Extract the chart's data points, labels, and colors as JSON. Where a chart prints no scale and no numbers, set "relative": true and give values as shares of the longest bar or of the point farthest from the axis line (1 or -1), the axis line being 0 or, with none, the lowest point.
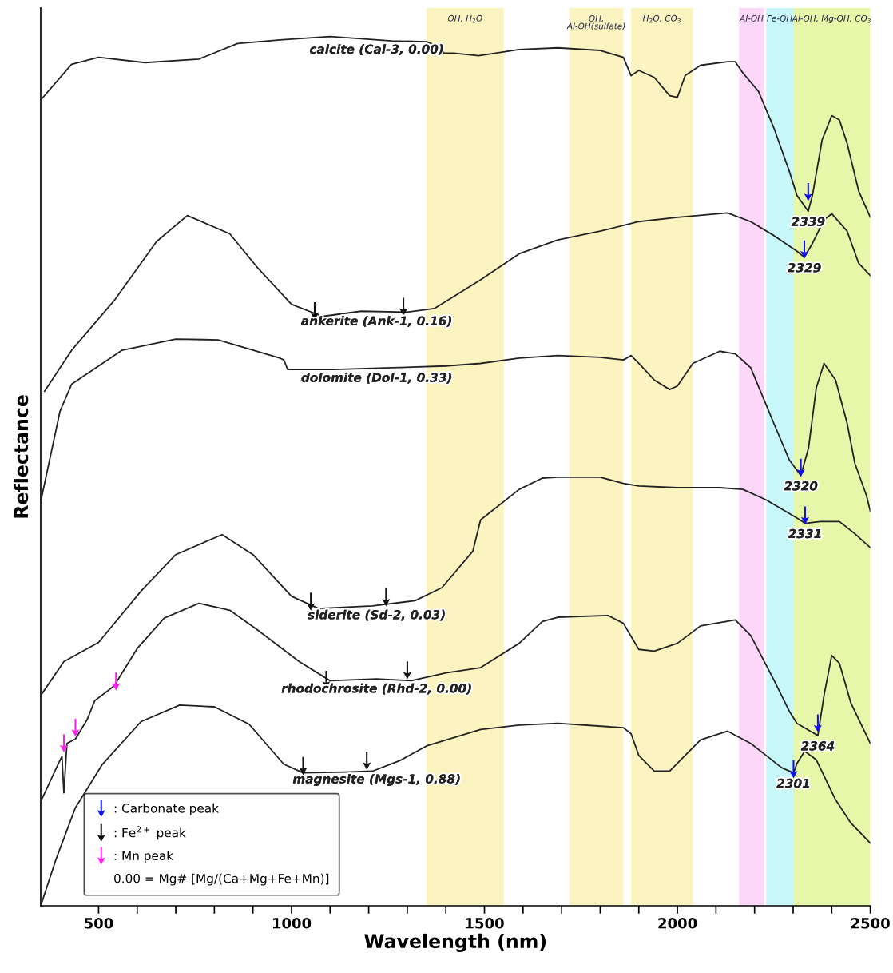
{
  "chart_data": {
    "type": "line",
    "relative": true,
    "xlabel": "Wavelength (nm)",
    "ylabel": "Reflectance",
    "xlim": [
      350,
      2500
    ],
    "xticks": [
      500,
      {
        "value": 600,
        "label": null
      },
      {
        "value": 700,
        "label": null
      },
      {
        "value": 800,
        "label": null
      },
      {
        "value": 900,
        "label": null
      },
      1000,
      {
        "value": 1100,
        "label": null
      },
      {
        "value": 1200,
        "label": null
      },
      {
        "value": 1300,
        "label": null
      },
      {
        "value": 1400,
        "label": null
      },
      1500,
      {
        "value": 1600,
        "label": null
      },
      {
        "value": 1700,
        "label": null
      },
      {
        "value": 1800,
        "label": null
      },
      {
        "value": 1900,
        "label": null
      },
      2000,
      {
        "value": 2100,
        "label": null
      },
      {
        "value": 2200,
        "label": null
      },
      {
        "value": 2300,
        "label": null
      },
      {
        "value": 2400,
        "label": null
      },
      2500
    ],
    "tick_labels": "x",
    "grid": false,
    "legend": "bottom left",
    "bands": [
      {
        "axis": "x",
        "from": 1350,
        "to": 1550,
        "label": "OH, H$_{2}$O",
        "color": "#fbf3c0"
      },
      {
        "axis": "x",
        "from": 1720,
        "to": 1860,
        "label": "OH,\nAl-OH(sulfate)",
        "color": "#fbf3c0"
      },
      {
        "axis": "x",
        "from": 1880,
        "to": 2040,
        "label": "H$_{2}$O, CO$_{3}$",
        "color": "#fbf3c0"
      },
      {
        "axis": "x",
        "from": 2160,
        "to": 2225,
        "label": "Al-OH",
        "color": "#fcd7f7"
      },
      {
        "axis": "x",
        "from": 2230,
        "to": 2300,
        "label": "Fe-OH",
        "color": "#c8f7f9"
      },
      {
        "axis": "x",
        "from": 2300,
        "to": 2500,
        "label": "Al-OH, Mg-OH, CO$_{3}$",
        "color": "#e6f7a9"
      }
    ],
    "series": [
      {
        "name": "calcite (Cal-3, 0.00)",
        "color": "#222222",
        "x": [
          350,
          430,
          500,
          620,
          760,
          860,
          970,
          1100,
          1260,
          1350,
          1390,
          1395,
          1420,
          1485,
          1590,
          1690,
          1800,
          1860,
          1880,
          1900,
          1940,
          1980,
          2000,
          2020,
          2060,
          2130,
          2150,
          2170,
          2210,
          2250,
          2290,
          2310,
          2339,
          2350,
          2375,
          2400,
          2420,
          2440,
          2470,
          2500
        ],
        "values": [
          0.927,
          0.968,
          0.976,
          0.97,
          0.974,
          0.992,
          0.996,
          1.0,
          0.995,
          0.994,
          0.987,
          0.981,
          0.981,
          0.978,
          0.985,
          0.987,
          0.984,
          0.976,
          0.955,
          0.961,
          0.953,
          0.932,
          0.93,
          0.955,
          0.967,
          0.971,
          0.971,
          0.958,
          0.937,
          0.895,
          0.845,
          0.817,
          0.799,
          0.817,
          0.881,
          0.909,
          0.904,
          0.877,
          0.822,
          0.792
        ]
      },
      {
        "name": "ankerite (Ank-1, 0.16)",
        "color": "#222222",
        "x": [
          360,
          430,
          540,
          650,
          730,
          840,
          910,
          1000,
          1080,
          1180,
          1300,
          1370,
          1490,
          1590,
          1690,
          1800,
          1900,
          2000,
          2130,
          2190,
          2250,
          2310,
          2329,
          2350,
          2380,
          2400,
          2440,
          2470,
          2500
        ],
        "values": [
          0.592,
          0.639,
          0.696,
          0.764,
          0.794,
          0.773,
          0.735,
          0.692,
          0.678,
          0.684,
          0.683,
          0.687,
          0.72,
          0.75,
          0.766,
          0.776,
          0.787,
          0.792,
          0.797,
          0.787,
          0.771,
          0.753,
          0.746,
          0.762,
          0.789,
          0.796,
          0.776,
          0.739,
          0.725
        ]
      },
      {
        "name": "dolomite (Dol-1, 0.33)",
        "color": "#222222",
        "x": [
          350,
          400,
          430,
          560,
          700,
          810,
          970,
          980,
          990,
          1110,
          1260,
          1400,
          1490,
          1590,
          1690,
          1800,
          1860,
          1880,
          1900,
          1940,
          1980,
          2000,
          2040,
          2110,
          2150,
          2190,
          2250,
          2290,
          2320,
          2340,
          2360,
          2380,
          2410,
          2440,
          2460,
          2490,
          2500
        ],
        "values": [
          0.465,
          0.569,
          0.6,
          0.639,
          0.652,
          0.651,
          0.63,
          0.628,
          0.617,
          0.617,
          0.619,
          0.621,
          0.624,
          0.63,
          0.633,
          0.631,
          0.628,
          0.633,
          0.624,
          0.605,
          0.594,
          0.598,
          0.624,
          0.638,
          0.635,
          0.619,
          0.555,
          0.513,
          0.495,
          0.527,
          0.596,
          0.624,
          0.605,
          0.555,
          0.509,
          0.472,
          0.454
        ]
      },
      {
        "name": "siderite (Sd-2, 0.03)",
        "color": "#222222",
        "x": [
          350,
          410,
          500,
          610,
          700,
          820,
          900,
          1000,
          1070,
          1210,
          1320,
          1390,
          1470,
          1490,
          1590,
          1650,
          1690,
          1800,
          1860,
          1900,
          2000,
          2110,
          2170,
          2230,
          2310,
          2331,
          2370,
          2420,
          2460,
          2500
        ],
        "values": [
          0.242,
          0.281,
          0.303,
          0.362,
          0.404,
          0.427,
          0.404,
          0.356,
          0.342,
          0.345,
          0.351,
          0.366,
          0.408,
          0.444,
          0.479,
          0.492,
          0.493,
          0.493,
          0.486,
          0.483,
          0.481,
          0.481,
          0.479,
          0.467,
          0.446,
          0.44,
          0.442,
          0.442,
          0.428,
          0.412
        ]
      },
      {
        "name": "rhodochrosite (Rhd-2, 0.00)",
        "color": "#222222",
        "x": [
          350,
          395,
          405,
          410,
          418,
          440,
          470,
          490,
          540,
          600,
          670,
          760,
          840,
          910,
          1020,
          1100,
          1220,
          1310,
          1400,
          1490,
          1590,
          1650,
          1690,
          1820,
          1860,
          1900,
          1940,
          2000,
          2060,
          2150,
          2190,
          2250,
          2290,
          2310,
          2364,
          2380,
          2400,
          2420,
          2450,
          2500
        ],
        "values": [
          0.12,
          0.163,
          0.172,
          0.13,
          0.187,
          0.192,
          0.214,
          0.236,
          0.253,
          0.296,
          0.331,
          0.348,
          0.34,
          0.318,
          0.281,
          0.259,
          0.261,
          0.259,
          0.268,
          0.274,
          0.302,
          0.327,
          0.332,
          0.334,
          0.325,
          0.295,
          0.293,
          0.302,
          0.322,
          0.329,
          0.311,
          0.26,
          0.224,
          0.21,
          0.196,
          0.242,
          0.288,
          0.279,
          0.233,
          0.187
        ]
      },
      {
        "name": "magnesite (Mgs-1, 0.88)",
        "color": "#222222",
        "x": [
          350,
          390,
          440,
          510,
          610,
          710,
          800,
          890,
          980,
          1030,
          1140,
          1210,
          1280,
          1350,
          1490,
          1590,
          1690,
          1860,
          1880,
          1900,
          1940,
          1980,
          2020,
          2060,
          2130,
          2190,
          2230,
          2270,
          2301,
          2310,
          2330,
          2360,
          2410,
          2450,
          2500
        ],
        "values": [
          0.0,
          0.054,
          0.113,
          0.163,
          0.212,
          0.231,
          0.229,
          0.209,
          0.163,
          0.153,
          0.154,
          0.155,
          0.167,
          0.184,
          0.203,
          0.208,
          0.21,
          0.205,
          0.198,
          0.173,
          0.155,
          0.155,
          0.173,
          0.191,
          0.201,
          0.187,
          0.173,
          0.159,
          0.153,
          0.164,
          0.178,
          0.168,
          0.122,
          0.095,
          0.072
        ]
      },
      {
        "name": ": Carbonate peak",
        "type": "scatter",
        "marker": "triangle",
        "color": "#1010ee",
        "x": [
          2339,
          2329,
          2320,
          2331,
          2364,
          2301
        ],
        "values": [
          0.821,
          0.755,
          0.504,
          0.449,
          0.21,
          0.157
        ]
      },
      {
        "name": ": Fe$^{2+}$ peak",
        "type": "scatter",
        "marker": "triangle",
        "color": "#111111",
        "x": [
          1060,
          1290,
          1050,
          1245,
          1090,
          1300,
          1030,
          1195
        ],
        "values": [
          0.684,
          0.689,
          0.35,
          0.355,
          0.26,
          0.271,
          0.161,
          0.167
        ]
      },
      {
        "name": ": Mn peak",
        "type": "scatter",
        "marker": "triangle",
        "color": "#ff20ee",
        "x": [
          545,
          440,
          410
        ],
        "values": [
          0.258,
          0.205,
          0.187
        ]
      }
    ],
    "annotations": [
      "0.00 = Mg# [Mg/(Ca+Mg+Fe+Mn)]",
      {
        "text": "2339",
        "x": 2339,
        "y": 0.799
      },
      {
        "text": "2329",
        "x": 2329,
        "y": 0.746
      },
      {
        "text": "2320",
        "x": 2320,
        "y": 0.495
      },
      {
        "text": "2331",
        "x": 2331,
        "y": 0.44
      },
      {
        "text": "2364",
        "x": 2364,
        "y": 0.196
      },
      {
        "text": "2301",
        "x": 2301,
        "y": 0.153
      }
    ]
  }
}
